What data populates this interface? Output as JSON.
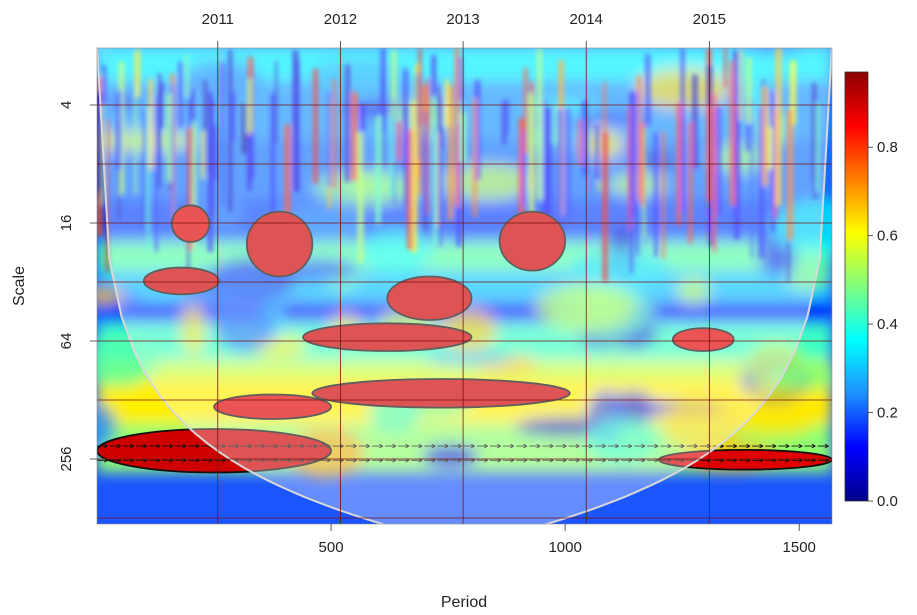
{
  "chart_data": {
    "type": "heatmap",
    "title": "",
    "xlabel": "Period",
    "ylabel": "Scale",
    "x_ticks": [
      500,
      1000,
      1500
    ],
    "xlim": [
      0,
      1570
    ],
    "top_axis_ticks": [
      {
        "label": "2011",
        "period": 258
      },
      {
        "label": "2012",
        "period": 520
      },
      {
        "label": "2013",
        "period": 782
      },
      {
        "label": "2014",
        "period": 1045
      },
      {
        "label": "2015",
        "period": 1308
      }
    ],
    "y_ticks": [
      4,
      16,
      64,
      256
    ],
    "y_scale": "log2",
    "ylim_scale": [
      2,
      512
    ],
    "y_reversed": true,
    "colorbar": {
      "ticks": [
        "0.0",
        "0.2",
        "0.4",
        "0.6",
        "0.8"
      ],
      "tick_values": [
        0.0,
        0.2,
        0.4,
        0.6,
        0.8
      ],
      "range": [
        0,
        0.97
      ],
      "colors": [
        "#00008b",
        "#0000ff",
        "#1e90ff",
        "#00ffff",
        "#7fff7f",
        "#ffff00",
        "#ff7f00",
        "#ff0000",
        "#8b0000"
      ]
    },
    "grid": true,
    "regions": [
      {
        "name": "band-scale-1024",
        "period": [
          0,
          1570
        ],
        "scale": [
          700,
          1024
        ],
        "power": 0.95
      },
      {
        "name": "band-low-left",
        "period": [
          0,
          500
        ],
        "scale": [
          180,
          300
        ],
        "power": 0.9
      },
      {
        "name": "band-low-right",
        "period": [
          1200,
          1570
        ],
        "scale": [
          230,
          290
        ],
        "power": 0.88
      },
      {
        "name": "blob-center",
        "period": [
          460,
          1010
        ],
        "scale": [
          100,
          140
        ],
        "power": 0.9
      },
      {
        "name": "blob-left-mid",
        "period": [
          250,
          500
        ],
        "scale": [
          120,
          160
        ],
        "power": 0.88
      },
      {
        "name": "blob-2012-64",
        "period": [
          440,
          800
        ],
        "scale": [
          52,
          72
        ],
        "power": 0.9
      },
      {
        "name": "blob-2013-40",
        "period": [
          620,
          800
        ],
        "scale": [
          30,
          50
        ],
        "power": 0.9
      },
      {
        "name": "blob-2015-60",
        "period": [
          1230,
          1360
        ],
        "scale": [
          55,
          72
        ],
        "power": 0.88
      },
      {
        "name": "blob-2010-32",
        "period": [
          100,
          260
        ],
        "scale": [
          27,
          37
        ],
        "power": 0.9
      },
      {
        "name": "blob-2011-24",
        "period": [
          320,
          460
        ],
        "scale": [
          14,
          30
        ],
        "power": 0.9
      },
      {
        "name": "blob-2013-18",
        "period": [
          860,
          1000
        ],
        "scale": [
          14,
          28
        ],
        "power": 0.9
      },
      {
        "name": "blob-2010-16",
        "period": [
          160,
          240
        ],
        "scale": [
          13,
          20
        ],
        "power": 0.88
      }
    ]
  }
}
